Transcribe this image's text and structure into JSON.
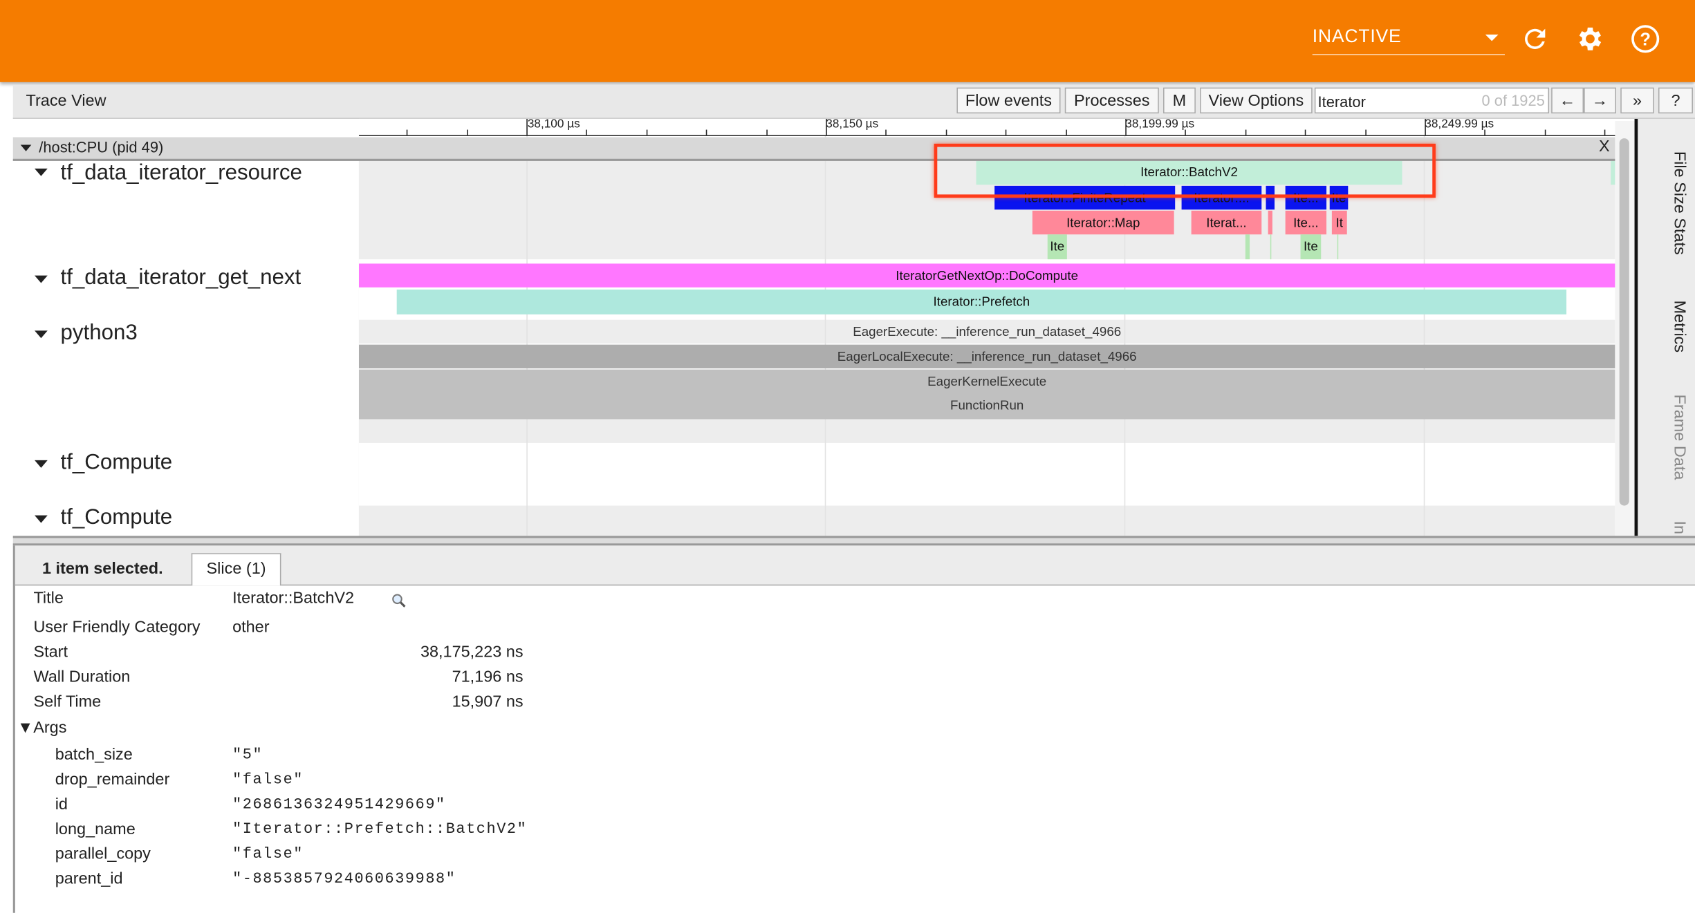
{
  "header": {
    "status_select": "INACTIVE",
    "icons": [
      "refresh-icon",
      "gear-icon",
      "help-icon"
    ],
    "accent": "#f57c00"
  },
  "toolbar": {
    "title": "Trace View",
    "flow_events": "Flow events",
    "processes": "Processes",
    "m": "M",
    "view_options": "View Options",
    "search_value": "Iterator",
    "search_count": "0 of 1925",
    "prev": "←",
    "next": "→",
    "more": "»",
    "help": "?"
  },
  "ruler": {
    "labels": [
      "38,100 µs",
      "38,150 µs",
      "38,199.99 µs",
      "38,249.99 µs"
    ]
  },
  "process": {
    "label": "/host:CPU (pid 49)",
    "close": "X"
  },
  "threads": [
    "tf_data_iterator_resource",
    "tf_data_iterator_get_next",
    "python3",
    "tf_Compute",
    "tf_Compute"
  ],
  "slices": {
    "batch": "Iterator::BatchV2",
    "repeat": "Iterator::FiniteRepeat",
    "iter2": "Iterator:...",
    "ite_a": "Ite...",
    "ite_b": "Ite",
    "map": "Iterator::Map",
    "iterat": "Iterat...",
    "ite_c": "Ite...",
    "it": "It",
    "ite_d": "Ite",
    "ite_e": "Ite",
    "docompute": "IteratorGetNextOp::DoCompute",
    "prefetch": "Iterator::Prefetch",
    "eager": "EagerExecute: __inference_run_dataset_4966",
    "eagerlocal": "EagerLocalExecute: __inference_run_dataset_4966",
    "kernel": "EagerKernelExecute",
    "funcrun": "FunctionRun"
  },
  "side_tabs": [
    "File Size Stats",
    "Metrics",
    "Frame Data",
    "In"
  ],
  "detail": {
    "selected": "1 item selected.",
    "tab": "Slice (1)",
    "fields": [
      {
        "label": "Title",
        "value": "Iterator::BatchV2"
      },
      {
        "label": "User Friendly Category",
        "value": "other"
      },
      {
        "label": "Start",
        "value": "38,175,223 ns"
      },
      {
        "label": "Wall Duration",
        "value": "71,196 ns"
      },
      {
        "label": "Self Time",
        "value": "15,907 ns"
      }
    ],
    "args_label": "▼Args",
    "args": [
      {
        "key": "batch_size",
        "value": "\"5\""
      },
      {
        "key": "drop_remainder",
        "value": "\"false\""
      },
      {
        "key": "id",
        "value": "\"2686136324951429669\""
      },
      {
        "key": "long_name",
        "value": "\"Iterator::Prefetch::BatchV2\""
      },
      {
        "key": "parallel_copy",
        "value": "\"false\""
      },
      {
        "key": "parent_id",
        "value": "\"-8853857924060639988\""
      }
    ]
  }
}
